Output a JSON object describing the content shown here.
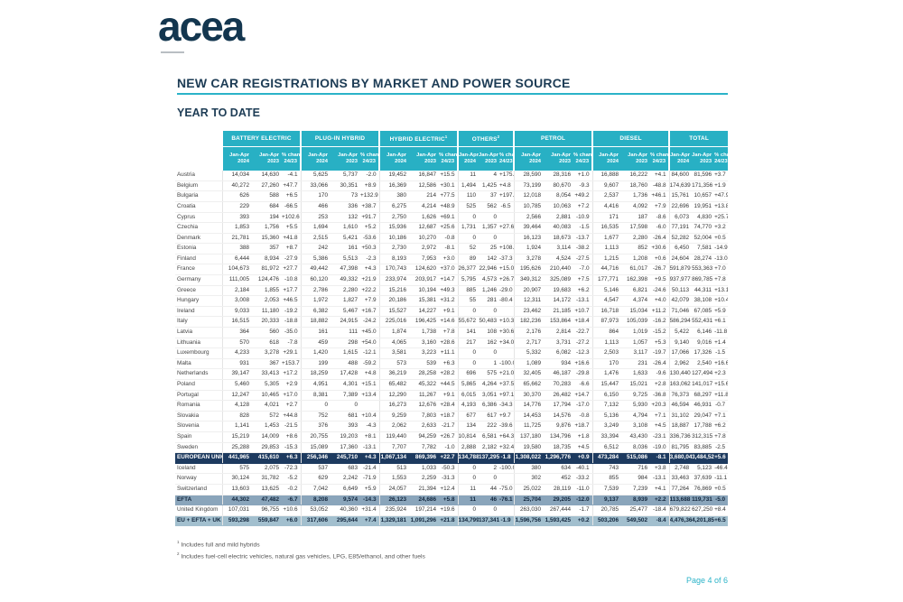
{
  "logo": {
    "text": "acea"
  },
  "header": {
    "title": "NEW CAR REGISTRATIONS BY MARKET AND POWER SOURCE",
    "subtitle": "YEAR TO DATE"
  },
  "table": {
    "groups": [
      {
        "label": "BATTERY ELECTRIC",
        "sup": ""
      },
      {
        "label": "PLUG-IN HYBRID",
        "sup": ""
      },
      {
        "label": "HYBRID ELECTRIC",
        "sup": "1"
      },
      {
        "label": "OTHERS",
        "sup": "2"
      },
      {
        "label": "PETROL",
        "sup": ""
      },
      {
        "label": "DIESEL",
        "sup": ""
      },
      {
        "label": "TOTAL",
        "sup": ""
      }
    ],
    "subcols": [
      {
        "l1": "Jan-Apr",
        "l2": "2024"
      },
      {
        "l1": "Jan-Apr",
        "l2": "2023"
      },
      {
        "l1": "% change",
        "l2": "24/23"
      }
    ],
    "rows": [
      {
        "name": "Austria",
        "style": "country",
        "v": [
          "14,034",
          "14,630",
          "-4.1",
          "5,625",
          "5,737",
          "-2.0",
          "19,452",
          "16,847",
          "+15.5",
          "11",
          "4",
          "+175.0",
          "28,590",
          "28,316",
          "+1.0",
          "16,888",
          "16,222",
          "+4.1",
          "84,600",
          "81,596",
          "+3.7"
        ]
      },
      {
        "name": "Belgium",
        "style": "country",
        "v": [
          "40,272",
          "27,260",
          "+47.7",
          "33,066",
          "30,351",
          "+8.9",
          "16,369",
          "12,586",
          "+30.1",
          "1,494",
          "1,425",
          "+4.8",
          "73,199",
          "80,670",
          "-9.3",
          "9,607",
          "18,760",
          "-48.8",
          "174,639",
          "171,356",
          "+1.9"
        ]
      },
      {
        "name": "Bulgaria",
        "style": "country",
        "v": [
          "626",
          "588",
          "+6.5",
          "170",
          "73",
          "+132.9",
          "380",
          "214",
          "+77.5",
          "110",
          "37",
          "+197.3",
          "12,018",
          "8,054",
          "+49.2",
          "2,537",
          "1,736",
          "+46.1",
          "15,761",
          "10,657",
          "+47.9"
        ]
      },
      {
        "name": "Croatia",
        "style": "country",
        "v": [
          "229",
          "684",
          "-66.5",
          "466",
          "336",
          "+38.7",
          "6,275",
          "4,214",
          "+48.9",
          "525",
          "562",
          "-6.5",
          "10,785",
          "10,063",
          "+7.2",
          "4,416",
          "4,092",
          "+7.9",
          "22,696",
          "19,951",
          "+13.8"
        ]
      },
      {
        "name": "Cyprus",
        "style": "country",
        "v": [
          "393",
          "194",
          "+102.6",
          "253",
          "132",
          "+91.7",
          "2,750",
          "1,626",
          "+69.1",
          "0",
          "0",
          "",
          "2,566",
          "2,881",
          "-10.9",
          "171",
          "187",
          "-8.6",
          "6,073",
          "4,830",
          "+25.7"
        ]
      },
      {
        "name": "Czechia",
        "style": "country",
        "v": [
          "1,853",
          "1,756",
          "+5.5",
          "1,694",
          "1,610",
          "+5.2",
          "15,936",
          "12,687",
          "+25.6",
          "1,731",
          "1,357",
          "+27.6",
          "39,464",
          "40,083",
          "-1.5",
          "16,535",
          "17,598",
          "-6.0",
          "77,191",
          "74,770",
          "+3.2"
        ]
      },
      {
        "name": "Denmark",
        "style": "country",
        "v": [
          "21,781",
          "15,360",
          "+41.8",
          "2,515",
          "5,421",
          "-53.6",
          "10,186",
          "10,270",
          "-0.8",
          "0",
          "0",
          "",
          "16,123",
          "18,673",
          "-13.7",
          "1,677",
          "2,280",
          "-26.4",
          "52,282",
          "52,004",
          "+0.5"
        ]
      },
      {
        "name": "Estonia",
        "style": "country",
        "v": [
          "388",
          "357",
          "+8.7",
          "242",
          "161",
          "+50.3",
          "2,730",
          "2,972",
          "-8.1",
          "52",
          "25",
          "+108.0",
          "1,924",
          "3,114",
          "-38.2",
          "1,113",
          "852",
          "+30.6",
          "6,450",
          "7,581",
          "-14.9"
        ]
      },
      {
        "name": "Finland",
        "style": "country",
        "v": [
          "6,444",
          "8,934",
          "-27.9",
          "5,386",
          "5,513",
          "-2.3",
          "8,193",
          "7,953",
          "+3.0",
          "89",
          "142",
          "-37.3",
          "3,278",
          "4,524",
          "-27.5",
          "1,215",
          "1,208",
          "+0.6",
          "24,604",
          "28,274",
          "-13.0"
        ]
      },
      {
        "name": "France",
        "style": "country",
        "v": [
          "104,673",
          "81,972",
          "+27.7",
          "49,442",
          "47,398",
          "+4.3",
          "170,743",
          "124,620",
          "+37.0",
          "26,377",
          "22,946",
          "+15.0",
          "195,626",
          "210,440",
          "-7.0",
          "44,716",
          "61,017",
          "-26.7",
          "591,879",
          "553,363",
          "+7.0"
        ]
      },
      {
        "name": "Germany",
        "style": "country",
        "v": [
          "111,005",
          "124,476",
          "-10.8",
          "60,120",
          "49,332",
          "+21.9",
          "233,974",
          "203,917",
          "+14.7",
          "5,795",
          "4,573",
          "+26.7",
          "349,312",
          "325,089",
          "+7.5",
          "177,771",
          "162,398",
          "+9.5",
          "937,977",
          "869,785",
          "+7.8"
        ]
      },
      {
        "name": "Greece",
        "style": "country",
        "v": [
          "2,184",
          "1,855",
          "+17.7",
          "2,786",
          "2,280",
          "+22.2",
          "15,216",
          "10,194",
          "+49.3",
          "885",
          "1,246",
          "-29.0",
          "20,907",
          "19,683",
          "+6.2",
          "5,146",
          "6,821",
          "-24.6",
          "50,113",
          "44,311",
          "+13.1"
        ]
      },
      {
        "name": "Hungary",
        "style": "country",
        "v": [
          "3,008",
          "2,053",
          "+46.5",
          "1,972",
          "1,827",
          "+7.9",
          "20,186",
          "15,381",
          "+31.2",
          "55",
          "281",
          "-80.4",
          "12,311",
          "14,172",
          "-13.1",
          "4,547",
          "4,374",
          "+4.0",
          "42,079",
          "38,108",
          "+10.4"
        ]
      },
      {
        "name": "Ireland",
        "style": "country",
        "v": [
          "9,033",
          "11,180",
          "-19.2",
          "6,382",
          "5,467",
          "+16.7",
          "15,527",
          "14,227",
          "+9.1",
          "0",
          "0",
          "",
          "23,462",
          "21,185",
          "+10.7",
          "16,718",
          "15,034",
          "+11.2",
          "71,046",
          "67,085",
          "+5.9"
        ]
      },
      {
        "name": "Italy",
        "style": "country",
        "v": [
          "16,515",
          "20,333",
          "-18.8",
          "18,882",
          "24,915",
          "-24.2",
          "225,016",
          "196,425",
          "+14.6",
          "55,672",
          "50,483",
          "+10.3",
          "182,236",
          "153,864",
          "+18.4",
          "87,973",
          "105,039",
          "-16.2",
          "586,294",
          "552,431",
          "+6.1"
        ]
      },
      {
        "name": "Latvia",
        "style": "country",
        "v": [
          "364",
          "560",
          "-35.0",
          "161",
          "111",
          "+45.0",
          "1,874",
          "1,738",
          "+7.8",
          "141",
          "108",
          "+30.6",
          "2,176",
          "2,814",
          "-22.7",
          "864",
          "1,019",
          "-15.2",
          "5,422",
          "6,146",
          "-11.8"
        ]
      },
      {
        "name": "Lithuania",
        "style": "country",
        "v": [
          "570",
          "618",
          "-7.8",
          "459",
          "298",
          "+54.0",
          "4,065",
          "3,160",
          "+28.6",
          "217",
          "162",
          "+34.0",
          "2,717",
          "3,731",
          "-27.2",
          "1,113",
          "1,057",
          "+5.3",
          "9,140",
          "9,016",
          "+1.4"
        ]
      },
      {
        "name": "Luxembourg",
        "style": "country",
        "v": [
          "4,233",
          "3,278",
          "+29.1",
          "1,420",
          "1,615",
          "-12.1",
          "3,581",
          "3,223",
          "+11.1",
          "0",
          "0",
          "",
          "5,332",
          "6,082",
          "-12.3",
          "2,503",
          "3,117",
          "-19.7",
          "17,066",
          "17,326",
          "-1.5"
        ]
      },
      {
        "name": "Malta",
        "style": "country",
        "v": [
          "931",
          "367",
          "+153.7",
          "199",
          "488",
          "-59.2",
          "573",
          "539",
          "+6.3",
          "0",
          "1",
          "-100.0",
          "1,089",
          "934",
          "+16.6",
          "170",
          "231",
          "-26.4",
          "2,962",
          "2,540",
          "+16.6"
        ]
      },
      {
        "name": "Netherlands",
        "style": "country",
        "v": [
          "39,147",
          "33,413",
          "+17.2",
          "18,259",
          "17,428",
          "+4.8",
          "36,219",
          "28,258",
          "+28.2",
          "696",
          "575",
          "+21.0",
          "32,405",
          "46,187",
          "-29.8",
          "1,476",
          "1,633",
          "-9.6",
          "130,440",
          "127,494",
          "+2.3"
        ]
      },
      {
        "name": "Poland",
        "style": "country",
        "v": [
          "5,460",
          "5,305",
          "+2.9",
          "4,951",
          "4,301",
          "+15.1",
          "65,482",
          "45,322",
          "+44.5",
          "5,865",
          "4,264",
          "+37.5",
          "65,662",
          "70,283",
          "-6.6",
          "15,447",
          "15,021",
          "+2.8",
          "163,062",
          "141,017",
          "+15.6"
        ]
      },
      {
        "name": "Portugal",
        "style": "country",
        "v": [
          "12,247",
          "10,465",
          "+17.0",
          "8,381",
          "7,389",
          "+13.4",
          "12,290",
          "11,267",
          "+9.1",
          "6,015",
          "3,051",
          "+97.1",
          "30,370",
          "26,482",
          "+14.7",
          "6,150",
          "9,725",
          "-36.8",
          "76,373",
          "68,297",
          "+11.8"
        ]
      },
      {
        "name": "Romania",
        "style": "country",
        "v": [
          "4,128",
          "4,021",
          "+2.7",
          "0",
          "0",
          "",
          "16,273",
          "12,676",
          "+28.4",
          "4,193",
          "6,386",
          "-34.3",
          "14,776",
          "17,794",
          "-17.0",
          "7,132",
          "5,930",
          "+20.3",
          "46,594",
          "46,931",
          "-0.7"
        ]
      },
      {
        "name": "Slovakia",
        "style": "country",
        "v": [
          "828",
          "572",
          "+44.8",
          "752",
          "681",
          "+10.4",
          "9,259",
          "7,803",
          "+18.7",
          "677",
          "617",
          "+9.7",
          "14,453",
          "14,576",
          "-0.8",
          "5,136",
          "4,794",
          "+7.1",
          "31,102",
          "29,047",
          "+7.1"
        ]
      },
      {
        "name": "Slovenia",
        "style": "country",
        "v": [
          "1,141",
          "1,453",
          "-21.5",
          "376",
          "393",
          "-4.3",
          "2,062",
          "2,633",
          "-21.7",
          "134",
          "222",
          "-39.6",
          "11,725",
          "9,876",
          "+18.7",
          "3,249",
          "3,108",
          "+4.5",
          "18,887",
          "17,788",
          "+6.2"
        ]
      },
      {
        "name": "Spain",
        "style": "country",
        "v": [
          "15,219",
          "14,009",
          "+8.6",
          "20,755",
          "19,203",
          "+8.1",
          "119,440",
          "94,259",
          "+26.7",
          "10,814",
          "6,581",
          "+64.3",
          "137,180",
          "134,796",
          "+1.8",
          "33,394",
          "43,430",
          "-23.1",
          "336,736",
          "312,315",
          "+7.8"
        ]
      },
      {
        "name": "Sweden",
        "style": "country",
        "v": [
          "25,288",
          "29,853",
          "-15.3",
          "15,089",
          "17,360",
          "-13.1",
          "7,707",
          "7,782",
          "-1.0",
          "2,888",
          "2,182",
          "+32.4",
          "19,580",
          "18,735",
          "+4.5",
          "6,512",
          "8,036",
          "-19.0",
          "81,795",
          "83,885",
          "-2.5"
        ]
      },
      {
        "name": "EUROPEAN UNION",
        "style": "eu",
        "v": [
          "441,965",
          "415,610",
          "+6.3",
          "256,346",
          "245,710",
          "+4.3",
          "1,067,134",
          "869,396",
          "+22.7",
          "134,788",
          "137,295",
          "-1.8",
          "1,308,022",
          "1,296,776",
          "+0.9",
          "473,284",
          "515,086",
          "-8.1",
          "3,680,042",
          "3,484,522",
          "+5.6"
        ]
      },
      {
        "name": "Iceland",
        "style": "country",
        "v": [
          "575",
          "2,075",
          "-72.3",
          "537",
          "683",
          "-21.4",
          "513",
          "1,033",
          "-50.3",
          "0",
          "2",
          "-100.0",
          "380",
          "634",
          "-40.1",
          "743",
          "716",
          "+3.8",
          "2,748",
          "5,123",
          "-46.4"
        ]
      },
      {
        "name": "Norway",
        "style": "country",
        "v": [
          "30,124",
          "31,782",
          "-5.2",
          "629",
          "2,242",
          "-71.9",
          "1,553",
          "2,259",
          "-31.3",
          "0",
          "0",
          "",
          "302",
          "452",
          "-33.2",
          "855",
          "984",
          "-13.1",
          "33,463",
          "37,639",
          "-11.1"
        ]
      },
      {
        "name": "Switzerland",
        "style": "country",
        "v": [
          "13,603",
          "13,625",
          "-0.2",
          "7,042",
          "6,649",
          "+5.9",
          "24,057",
          "21,394",
          "+12.4",
          "11",
          "44",
          "-75.0",
          "25,022",
          "28,119",
          "-11.0",
          "7,539",
          "7,239",
          "+4.1",
          "77,264",
          "76,869",
          "+0.5"
        ]
      },
      {
        "name": "EFTA",
        "style": "efta",
        "v": [
          "44,302",
          "47,482",
          "-6.7",
          "8,208",
          "9,574",
          "-14.3",
          "26,123",
          "24,686",
          "+5.8",
          "11",
          "46",
          "-76.1",
          "25,704",
          "29,205",
          "-12.0",
          "9,137",
          "8,939",
          "+2.2",
          "113,688",
          "119,731",
          "-5.0"
        ]
      },
      {
        "name": "United Kingdom",
        "style": "country",
        "v": [
          "107,031",
          "96,755",
          "+10.6",
          "53,052",
          "40,360",
          "+31.4",
          "235,924",
          "197,214",
          "+19.6",
          "0",
          "0",
          "",
          "263,030",
          "267,444",
          "-1.7",
          "20,785",
          "25,477",
          "-18.4",
          "679,822",
          "627,250",
          "+8.4"
        ]
      },
      {
        "name": "EU + EFTA + UK",
        "style": "grand",
        "v": [
          "593,298",
          "559,847",
          "+6.0",
          "317,606",
          "295,644",
          "+7.4",
          "1,329,181",
          "1,091,296",
          "+21.8",
          "134,799",
          "137,341",
          "-1.9",
          "1,596,756",
          "1,593,425",
          "+0.2",
          "503,206",
          "549,502",
          "-8.4",
          "4,476,369",
          "4,201,854",
          "+6.5"
        ]
      }
    ]
  },
  "footnotes": [
    {
      "sup": "1",
      "text": "Includes full and mild hybrids"
    },
    {
      "sup": "2",
      "text": "Includes fuel-cell electric vehicles, natural gas vehicles, LPG, E85/ethanol, and other fuels"
    }
  ],
  "page_label": "Page 4 of 6",
  "colors": {
    "teal": "#28b0c4",
    "navy": "#1d3c55",
    "eu_row": "#1d3a5f",
    "efta_row": "#8aa5bb",
    "grand_row": "#a2bfce"
  }
}
